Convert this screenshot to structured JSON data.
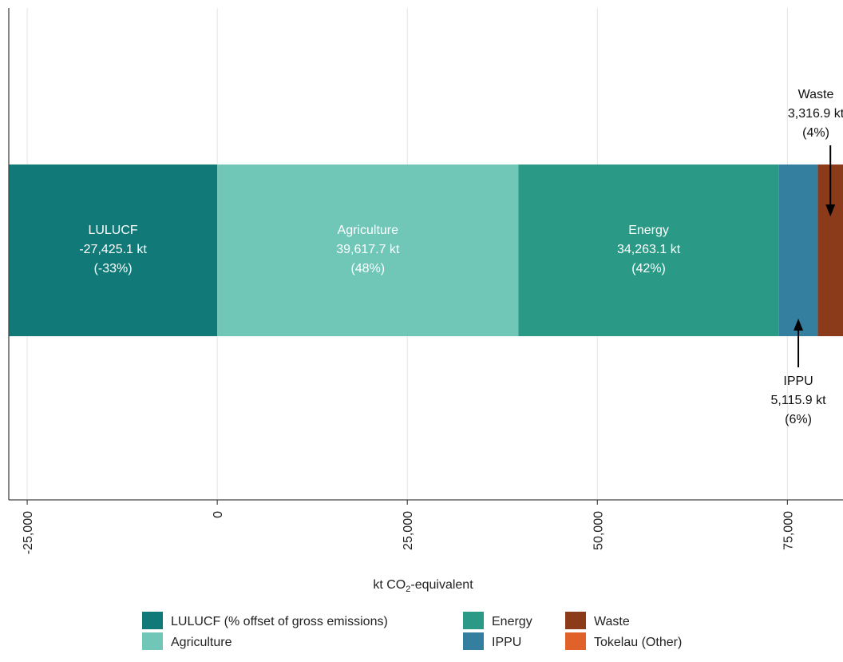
{
  "chart_data": {
    "type": "bar",
    "orientation": "horizontal-stacked",
    "xlabel_prefix": "kt CO",
    "xlabel_sub": "2",
    "xlabel_suffix": "-equivalent",
    "xlim": [
      -27425.1,
      82313.6
    ],
    "grid": true,
    "legend_position": "bottom",
    "tick_values": [
      -25000,
      0,
      25000,
      50000,
      75000
    ],
    "tick_labels": [
      "-25,000",
      "0",
      "25,000",
      "50,000",
      "75,000"
    ],
    "segments": [
      {
        "key": "lulucf",
        "name": "LULUCF",
        "start": -27425.1,
        "value": -27425.1,
        "color": "#117a78",
        "label_lines": [
          "LULUCF",
          "-27,425.1 kt",
          "(-33%)"
        ]
      },
      {
        "key": "agriculture",
        "name": "Agriculture",
        "start": 0,
        "value": 39617.7,
        "color": "#70c7b8",
        "label_lines": [
          "Agriculture",
          "39,617.7 kt",
          "(48%)"
        ]
      },
      {
        "key": "energy",
        "name": "Energy",
        "start": 39617.7,
        "value": 34263.1,
        "color": "#2a9a86",
        "label_lines": [
          "Energy",
          "34,263.1 kt",
          "(42%)"
        ]
      },
      {
        "key": "ippu",
        "name": "IPPU",
        "start": 73880.8,
        "value": 5115.9,
        "color": "#347fa0",
        "label_lines": [
          "IPPU",
          "5,115.9 kt",
          "(6%)"
        ]
      },
      {
        "key": "waste",
        "name": "Waste",
        "start": 78996.7,
        "value": 3316.9,
        "color": "#8b3a1a",
        "label_lines": [
          "Waste",
          "3,316.9 kt",
          "(4%)"
        ]
      }
    ],
    "legend": [
      {
        "label": "LULUCF (% offset of gross emissions)",
        "color": "#117a78"
      },
      {
        "label": "Agriculture",
        "color": "#70c7b8"
      },
      {
        "label": "Energy",
        "color": "#2a9a86"
      },
      {
        "label": "IPPU",
        "color": "#347fa0"
      },
      {
        "label": "Waste",
        "color": "#8b3a1a"
      },
      {
        "label": "Tokelau (Other)",
        "color": "#e0612a"
      }
    ]
  }
}
